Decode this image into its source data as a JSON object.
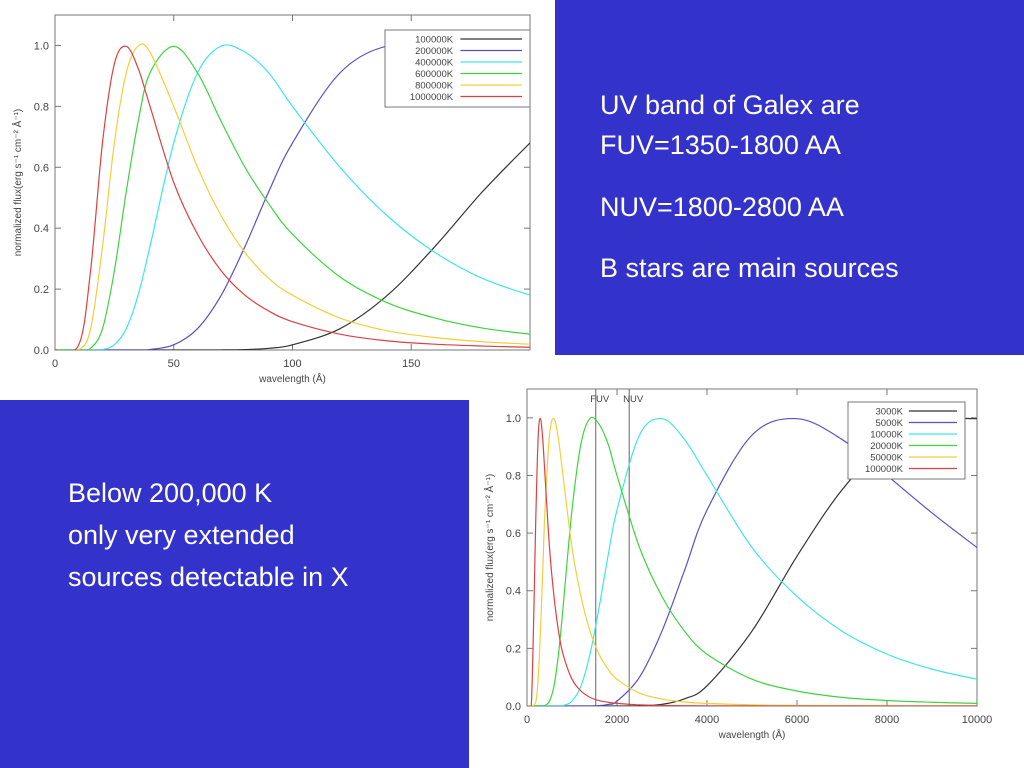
{
  "chart_data": [
    {
      "type": "line",
      "xlabel": "wavelength (Å)",
      "ylabel": "normalized flux(erg s⁻¹ cm⁻² Å⁻¹)",
      "x": [
        0,
        10,
        15,
        20,
        25,
        30,
        35,
        40,
        50,
        60,
        70,
        80,
        90,
        100,
        120,
        140,
        160,
        180,
        200
      ],
      "xlim": [
        0,
        200
      ],
      "ylim": [
        0,
        1.1
      ],
      "xticks": [
        0,
        50,
        100,
        150
      ],
      "yticks": [
        {
          "value": 0,
          "label": "0.0"
        },
        0.2,
        0.4,
        0.6,
        0.8,
        {
          "value": 1,
          "label": "1.0"
        }
      ],
      "legend": "upper right",
      "series": [
        {
          "name": "100000K",
          "color": "#333333",
          "values": [
            0,
            0,
            0,
            0,
            0,
            0,
            0,
            0,
            0,
            0,
            0.0002,
            0.0015,
            0.0055,
            0.017,
            0.07,
            0.18,
            0.34,
            0.52,
            0.68
          ]
        },
        {
          "name": "200000K",
          "color": "#5a4fc4",
          "values": [
            0,
            0,
            0,
            0,
            0,
            0,
            0.0002,
            0.0015,
            0.017,
            0.07,
            0.18,
            0.34,
            0.52,
            0.68,
            0.91,
            0.998,
            0.978,
            0.91,
            0.8
          ]
        },
        {
          "name": "400000K",
          "color": "#3ee6e6",
          "values": [
            0,
            0,
            0,
            0.0015,
            0.017,
            0.07,
            0.18,
            0.34,
            0.68,
            0.91,
            0.998,
            0.978,
            0.91,
            0.8,
            0.6,
            0.44,
            0.32,
            0.235,
            0.18
          ]
        },
        {
          "name": "600000K",
          "color": "#3ed43e",
          "values": [
            0,
            0,
            0.006,
            0.07,
            0.26,
            0.52,
            0.75,
            0.91,
            0.997,
            0.91,
            0.75,
            0.6,
            0.48,
            0.38,
            0.24,
            0.155,
            0.105,
            0.072,
            0.052
          ]
        },
        {
          "name": "800000K",
          "color": "#f2cf3a",
          "values": [
            0,
            0.0015,
            0.07,
            0.34,
            0.68,
            0.91,
            0.998,
            0.978,
            0.8,
            0.6,
            0.44,
            0.32,
            0.235,
            0.18,
            0.105,
            0.063,
            0.041,
            0.027,
            0.019
          ]
        },
        {
          "name": "1000000K",
          "color": "#dd4040",
          "values": [
            0,
            0.017,
            0.262,
            0.681,
            0.94,
            0.997,
            0.925,
            0.8,
            0.55,
            0.38,
            0.26,
            0.18,
            0.128,
            0.093,
            0.052,
            0.03,
            0.019,
            0.013,
            0.009
          ]
        }
      ]
    },
    {
      "type": "line",
      "xlabel": "wavelength (Å)",
      "ylabel": "normalized flux(erg s⁻¹ cm⁻² Å⁻¹)",
      "x": [
        0,
        100,
        200,
        250,
        300,
        350,
        400,
        500,
        600,
        700,
        800,
        1000,
        1200,
        1400,
        1600,
        1800,
        2000,
        2500,
        3000,
        3500,
        4000,
        5000,
        6000,
        7000,
        8000,
        9000,
        10000
      ],
      "xlim": [
        0,
        10000
      ],
      "ylim": [
        0,
        1.1
      ],
      "xticks": [
        0,
        2000,
        4000,
        6000,
        8000,
        10000
      ],
      "yticks": [
        {
          "value": 0,
          "label": "0.0"
        },
        0.2,
        0.4,
        0.6,
        0.8,
        {
          "value": 1,
          "label": "1.0"
        }
      ],
      "legend": "upper right",
      "markers": [
        {
          "label": "FUV",
          "x": 1528
        },
        {
          "label": "NUV",
          "x": 2271
        }
      ],
      "series": [
        {
          "name": "3000K",
          "color": "#333333",
          "values": [
            0,
            0,
            0,
            0,
            0,
            0,
            0,
            0,
            0,
            0,
            0,
            0,
            0,
            0,
            0,
            0,
            0,
            0.0006,
            0.0056,
            0.025,
            0.07,
            0.26,
            0.52,
            0.75,
            0.91,
            0.99,
            0.997
          ]
        },
        {
          "name": "5000K",
          "color": "#5a4fc4",
          "values": [
            0,
            0,
            0,
            0,
            0,
            0,
            0,
            0,
            0,
            0,
            0,
            0,
            0,
            0.0002,
            0.0015,
            0.0055,
            0.017,
            0.1,
            0.26,
            0.47,
            0.68,
            0.94,
            0.997,
            0.925,
            0.8,
            0.67,
            0.55
          ]
        },
        {
          "name": "10000K",
          "color": "#3ee6e6",
          "values": [
            0,
            0,
            0,
            0,
            0,
            0,
            0,
            0,
            0,
            0.0002,
            0.0015,
            0.017,
            0.07,
            0.18,
            0.34,
            0.52,
            0.68,
            0.94,
            0.997,
            0.925,
            0.8,
            0.55,
            0.38,
            0.26,
            0.18,
            0.128,
            0.093
          ]
        },
        {
          "name": "20000K",
          "color": "#3ed43e",
          "values": [
            0,
            0,
            0,
            0,
            0,
            0.0002,
            0.0015,
            0.017,
            0.07,
            0.18,
            0.34,
            0.68,
            0.91,
            0.998,
            0.978,
            0.91,
            0.8,
            0.55,
            0.38,
            0.26,
            0.18,
            0.093,
            0.052,
            0.03,
            0.019,
            0.013,
            0.009
          ]
        },
        {
          "name": "50000K",
          "color": "#f2cf3a",
          "values": [
            0,
            0,
            0.017,
            0.1,
            0.26,
            0.47,
            0.68,
            0.94,
            0.997,
            0.925,
            0.8,
            0.55,
            0.38,
            0.26,
            0.18,
            0.128,
            0.093,
            0.045,
            0.024,
            0.014,
            0.009,
            0.0038,
            0.002,
            0.0012,
            0.0008,
            0.0005,
            0.0004
          ]
        },
        {
          "name": "100000K",
          "color": "#dd4040",
          "values": [
            0,
            0.017,
            0.68,
            0.94,
            0.997,
            0.925,
            0.8,
            0.55,
            0.38,
            0.26,
            0.18,
            0.093,
            0.052,
            0.03,
            0.019,
            0.013,
            0.009,
            0.0038,
            0.002,
            0.001,
            0.0007,
            0.0003,
            0.0002,
            0.0001,
            0.0001,
            0.0001,
            0
          ]
        }
      ]
    }
  ],
  "text_panels": {
    "right": [
      "UV band of Galex are",
      "FUV=1350-1800 AA",
      "NUV=1800-2800 AA",
      "B stars are main sources"
    ],
    "left": [
      "Below 200,000 K",
      "only very extended",
      "sources detectable in X"
    ]
  }
}
